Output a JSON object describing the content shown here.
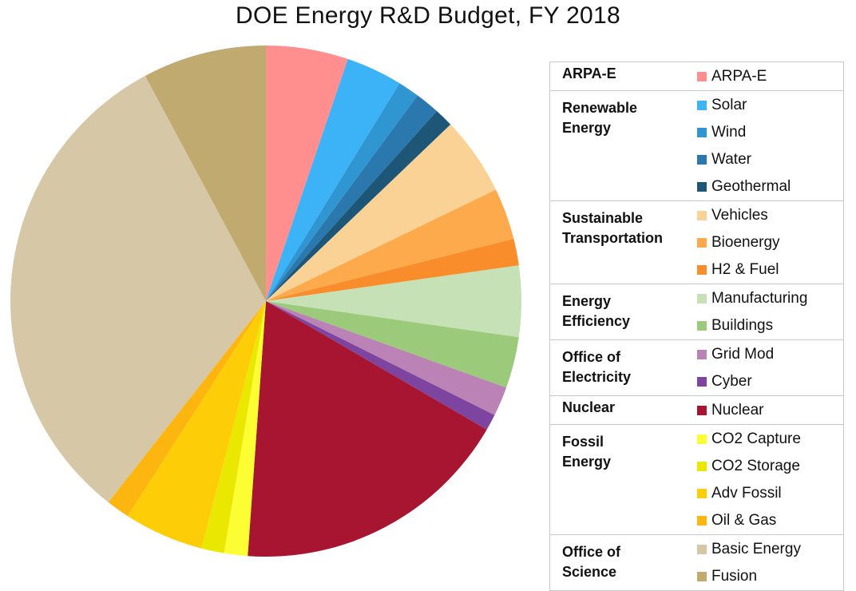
{
  "chart_data": {
    "type": "pie",
    "title": "DOE Energy R&D Budget, FY 2018",
    "legend_position": "right",
    "groups": [
      {
        "name": "ARPA-E",
        "label_lines": [
          "ARPA-E"
        ],
        "items": [
          {
            "name": "ARPA-E",
            "value": 353,
            "color": "#ff8f8f"
          }
        ]
      },
      {
        "name": "Renewable Energy",
        "label_lines": [
          "Renewable",
          "Energy"
        ],
        "items": [
          {
            "name": "Solar",
            "value": 242,
            "color": "#3cb2f7"
          },
          {
            "name": "Wind",
            "value": 92,
            "color": "#2f96d2"
          },
          {
            "name": "Water",
            "value": 105,
            "color": "#2a78ae"
          },
          {
            "name": "Geothermal",
            "value": 81,
            "color": "#1e5678"
          }
        ]
      },
      {
        "name": "Sustainable Transportation",
        "label_lines": [
          "Sustainable",
          "Transportation"
        ],
        "items": [
          {
            "name": "Vehicles",
            "value": 337,
            "color": "#fad296"
          },
          {
            "name": "Bioenergy",
            "value": 221,
            "color": "#fcaa4b"
          },
          {
            "name": "H2 & Fuel",
            "value": 115,
            "color": "#f98d2c"
          }
        ]
      },
      {
        "name": "Energy Efficiency",
        "label_lines": [
          "Energy",
          "Efficiency"
        ],
        "items": [
          {
            "name": "Manufacturing",
            "value": 305,
            "color": "#c6e1b5"
          },
          {
            "name": "Buildings",
            "value": 220,
            "color": "#9bcb7a"
          }
        ]
      },
      {
        "name": "Office of Electricity",
        "label_lines": [
          "Office of",
          "Electricity"
        ],
        "items": [
          {
            "name": "Grid Mod",
            "value": 126,
            "color": "#bb82b6"
          },
          {
            "name": "Cyber",
            "value": 70,
            "color": "#7e45a0"
          }
        ]
      },
      {
        "name": "Nuclear",
        "label_lines": [
          "Nuclear"
        ],
        "items": [
          {
            "name": "Nuclear",
            "value": 1205,
            "color": "#a71530"
          }
        ]
      },
      {
        "name": "Fossil Energy",
        "label_lines": [
          "Fossil",
          "Energy"
        ],
        "items": [
          {
            "name": "CO2 Capture",
            "value": 101,
            "color": "#fdfd33"
          },
          {
            "name": "CO2 Storage",
            "value": 98,
            "color": "#eae800"
          },
          {
            "name": "Adv Fossil",
            "value": 342,
            "color": "#fdcd07"
          },
          {
            "name": "Oil & Gas",
            "value": 100,
            "color": "#fdb50f"
          }
        ]
      },
      {
        "name": "Office of Science",
        "label_lines": [
          "Office of",
          "Science"
        ],
        "items": [
          {
            "name": "Basic Energy",
            "value": 2145,
            "color": "#d6c8a6"
          },
          {
            "name": "Fusion",
            "value": 532,
            "color": "#c0aa70"
          }
        ]
      }
    ]
  }
}
